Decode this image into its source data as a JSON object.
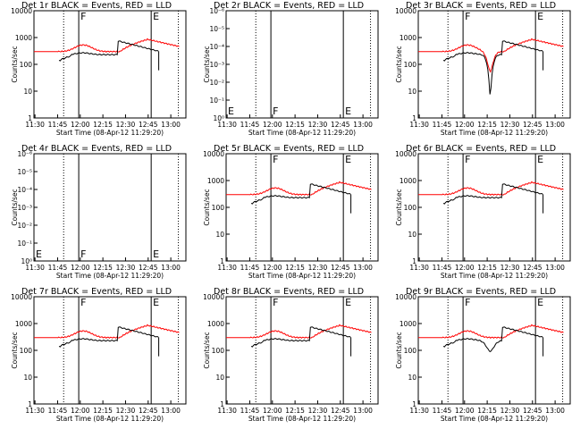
{
  "colors": {
    "events": "#000000",
    "lld": "#ff0000",
    "frame": "#000000",
    "background": "#ffffff"
  },
  "chart_data": [
    {
      "type": "line",
      "title": "Det 1r  BLACK = Events, RED = LLD",
      "xlabel": "Start Time (08-Apr-12 11:29:20)",
      "ylabel": "Counts/sec",
      "yscale": "log",
      "ylim": [
        1,
        10000
      ],
      "yticks": [
        "1",
        "10",
        "100",
        "1000",
        "10000"
      ],
      "xticks": [
        "11:30",
        "11:45",
        "12:00",
        "12:15",
        "12:30",
        "12:45",
        "13:00"
      ],
      "markers": [
        "F",
        "E"
      ],
      "has_data": true,
      "dip": false,
      "dip2": false
    },
    {
      "type": "line",
      "title": "Det 2r  BLACK = Events, RED = LLD",
      "xlabel": "Start Time (08-Apr-12 11:29:20)",
      "ylabel": "Counts/sec",
      "yscale": "log",
      "ylim": [
        1,
        1e-06
      ],
      "yticks": [
        "10⁰",
        "10⁻¹",
        "10⁻²",
        "10⁻³",
        "10⁻⁴",
        "10⁻⁵",
        "10⁻⁶"
      ],
      "xticks": [
        "11:30",
        "11:45",
        "12:00",
        "12:15",
        "12:30",
        "12:45",
        "13:00"
      ],
      "markers": [
        "E",
        "F",
        "E"
      ],
      "has_data": false,
      "dip": false,
      "dip2": false
    },
    {
      "type": "line",
      "title": "Det 3r  BLACK = Events, RED = LLD",
      "xlabel": "Start Time (08-Apr-12 11:29:20)",
      "ylabel": "Counts/sec",
      "yscale": "log",
      "ylim": [
        1,
        10000
      ],
      "yticks": [
        "1",
        "10",
        "100",
        "1000",
        "10000"
      ],
      "xticks": [
        "11:30",
        "11:45",
        "12:00",
        "12:15",
        "12:30",
        "12:45",
        "13:00"
      ],
      "markers": [
        "F",
        "E"
      ],
      "has_data": true,
      "dip": true,
      "dip2": false
    },
    {
      "type": "line",
      "title": "Det 4r  BLACK = Events, RED = LLD",
      "xlabel": "Start Time (08-Apr-12 11:29:20)",
      "ylabel": "Counts/sec",
      "yscale": "log",
      "ylim": [
        1,
        1e-06
      ],
      "yticks": [
        "10⁰",
        "10⁻¹",
        "10⁻²",
        "10⁻³",
        "10⁻⁴",
        "10⁻⁵",
        "10⁻⁶"
      ],
      "xticks": [
        "11:30",
        "11:45",
        "12:00",
        "12:15",
        "12:30",
        "12:45",
        "13:00"
      ],
      "markers": [
        "E",
        "F",
        "E"
      ],
      "has_data": false,
      "dip": false,
      "dip2": false
    },
    {
      "type": "line",
      "title": "Det 5r  BLACK = Events, RED = LLD",
      "xlabel": "Start Time (08-Apr-12 11:29:20)",
      "ylabel": "Counts/sec",
      "yscale": "log",
      "ylim": [
        1,
        10000
      ],
      "yticks": [
        "1",
        "10",
        "100",
        "1000",
        "10000"
      ],
      "xticks": [
        "11:30",
        "11:45",
        "12:00",
        "12:15",
        "12:30",
        "12:45",
        "13:00"
      ],
      "markers": [
        "F",
        "E"
      ],
      "has_data": true,
      "dip": false,
      "dip2": false
    },
    {
      "type": "line",
      "title": "Det 6r  BLACK = Events, RED = LLD",
      "xlabel": "Start Time (08-Apr-12 11:29:20)",
      "ylabel": "Counts/sec",
      "yscale": "log",
      "ylim": [
        1,
        10000
      ],
      "yticks": [
        "1",
        "10",
        "100",
        "1000",
        "10000"
      ],
      "xticks": [
        "11:30",
        "11:45",
        "12:00",
        "12:15",
        "12:30",
        "12:45",
        "13:00"
      ],
      "markers": [
        "F",
        "E"
      ],
      "has_data": true,
      "dip": false,
      "dip2": false
    },
    {
      "type": "line",
      "title": "Det 7r  BLACK = Events, RED = LLD",
      "xlabel": "Start Time (08-Apr-12 11:29:20)",
      "ylabel": "Counts/sec",
      "yscale": "log",
      "ylim": [
        1,
        10000
      ],
      "yticks": [
        "1",
        "10",
        "100",
        "1000",
        "10000"
      ],
      "xticks": [
        "11:30",
        "11:45",
        "12:00",
        "12:15",
        "12:30",
        "12:45",
        "13:00"
      ],
      "markers": [
        "F",
        "E"
      ],
      "has_data": true,
      "dip": false,
      "dip2": false
    },
    {
      "type": "line",
      "title": "Det 8r  BLACK = Events, RED = LLD",
      "xlabel": "Start Time (08-Apr-12 11:29:20)",
      "ylabel": "Counts/sec",
      "yscale": "log",
      "ylim": [
        1,
        10000
      ],
      "yticks": [
        "1",
        "10",
        "100",
        "1000",
        "10000"
      ],
      "xticks": [
        "11:30",
        "11:45",
        "12:00",
        "12:15",
        "12:30",
        "12:45",
        "13:00"
      ],
      "markers": [
        "F",
        "E"
      ],
      "has_data": true,
      "dip": false,
      "dip2": false
    },
    {
      "type": "line",
      "title": "Det 9r  BLACK = Events, RED = LLD",
      "xlabel": "Start Time (08-Apr-12 11:29:20)",
      "ylabel": "Counts/sec",
      "yscale": "log",
      "ylim": [
        1,
        10000
      ],
      "yticks": [
        "1",
        "10",
        "100",
        "1000",
        "10000"
      ],
      "xticks": [
        "11:30",
        "11:45",
        "12:00",
        "12:15",
        "12:30",
        "12:45",
        "13:00"
      ],
      "markers": [
        "F",
        "E"
      ],
      "has_data": true,
      "dip": false,
      "dip2": true
    }
  ]
}
